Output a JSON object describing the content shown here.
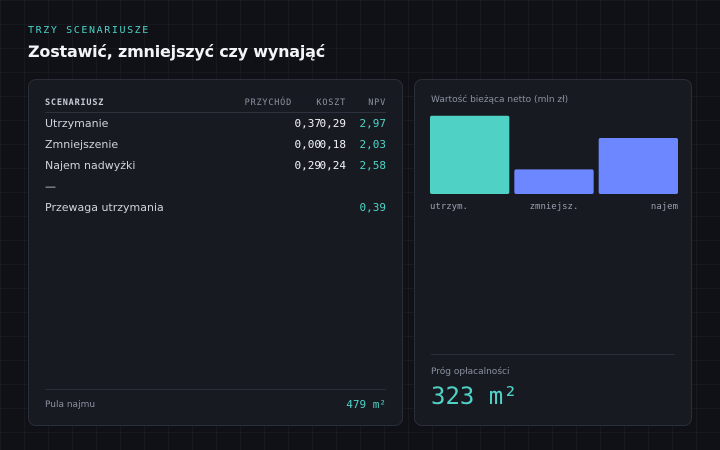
{
  "header": {
    "eyebrow": "TRZY SCENARIUSZE",
    "title": "Zostawić, zmniejszyć czy wynająć"
  },
  "table": {
    "columns": [
      "SCENARIUSZ",
      "PRZYCHÓD",
      "KOSZT",
      "NPV"
    ],
    "rows": [
      {
        "name": "Utrzymanie",
        "przychod": "0,37",
        "koszt": "0,29",
        "npv": "2,97"
      },
      {
        "name": "Zmniejszenie",
        "przychod": "0,00",
        "koszt": "0,18",
        "npv": "2,03"
      },
      {
        "name": "Najem nadwyżki",
        "przychod": "0,29",
        "koszt": "0,24",
        "npv": "2,58"
      }
    ],
    "divider": "—",
    "advantage": {
      "label": "Przewaga utrzymania",
      "value": "0,39"
    },
    "footer": {
      "label": "Pula najmu",
      "value": "479 m²"
    }
  },
  "chart_data": {
    "type": "bar",
    "title": "Wartość bieżąca netto (mln zł)",
    "categories": [
      "utrzym.",
      "zmniejsz.",
      "najem"
    ],
    "values": [
      2.97,
      2.03,
      2.58
    ],
    "ylim": [
      1.6,
      3.0
    ],
    "colors": [
      "#4fd1c5",
      "#6c87ff",
      "#6c87ff"
    ],
    "grid": false
  },
  "breakeven": {
    "label": "Próg opłacalności",
    "value": "323 m²"
  }
}
